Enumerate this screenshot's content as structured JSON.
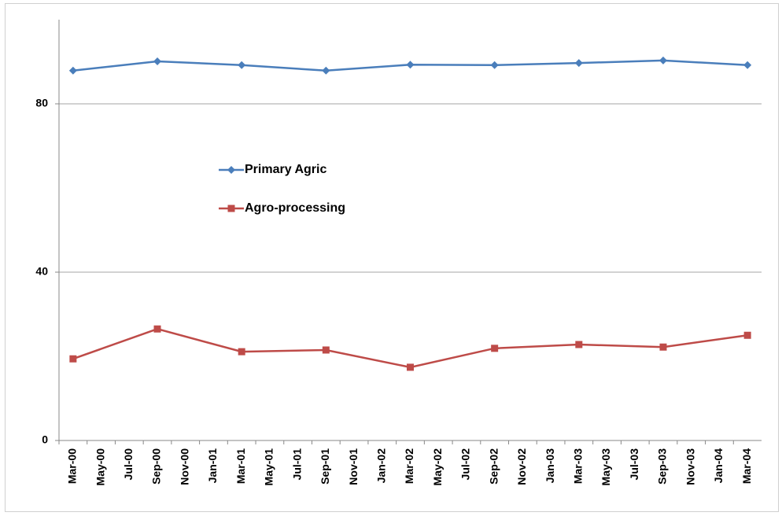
{
  "chart_data": {
    "type": "line",
    "x": [
      "2000-03",
      "2000-09",
      "2001-03",
      "2001-09",
      "2002-03",
      "2002-09",
      "2003-03",
      "2003-09",
      "2004-03"
    ],
    "series": [
      {
        "name": "Primary Agric",
        "color": "#4a7ebb",
        "marker": "diamond",
        "values": [
          87.9,
          90.1,
          89.2,
          87.9,
          89.3,
          89.2,
          89.7,
          90.3,
          89.2
        ]
      },
      {
        "name": "Agro-processing",
        "color": "#be4b48",
        "marker": "square",
        "values": [
          19.4,
          26.5,
          21.1,
          21.5,
          17.4,
          21.9,
          22.8,
          22.2,
          25.0
        ]
      }
    ],
    "xlim": [
      "2000-03",
      "2004-03"
    ],
    "xticks": [
      {
        "value": "2000-03",
        "label": "Mar-00"
      },
      {
        "value": "2000-05",
        "label": "May-00"
      },
      {
        "value": "2000-07",
        "label": "Jul-00"
      },
      {
        "value": "2000-09",
        "label": "Sep-00"
      },
      {
        "value": "2000-11",
        "label": "Nov-00"
      },
      {
        "value": "2001-01",
        "label": "Jan-01"
      },
      {
        "value": "2001-03",
        "label": "Mar-01"
      },
      {
        "value": "2001-05",
        "label": "May-01"
      },
      {
        "value": "2001-07",
        "label": "Jul-01"
      },
      {
        "value": "2001-09",
        "label": "Sep-01"
      },
      {
        "value": "2001-11",
        "label": "Nov-01"
      },
      {
        "value": "2002-01",
        "label": "Jan-02"
      },
      {
        "value": "2002-03",
        "label": "Mar-02"
      },
      {
        "value": "2002-05",
        "label": "May-02"
      },
      {
        "value": "2002-07",
        "label": "Jul-02"
      },
      {
        "value": "2002-09",
        "label": "Sep-02"
      },
      {
        "value": "2002-11",
        "label": "Nov-02"
      },
      {
        "value": "2003-01",
        "label": "Jan-03"
      },
      {
        "value": "2003-03",
        "label": "Mar-03"
      },
      {
        "value": "2003-05",
        "label": "May-03"
      },
      {
        "value": "2003-07",
        "label": "Jul-03"
      },
      {
        "value": "2003-09",
        "label": "Sep-03"
      },
      {
        "value": "2003-11",
        "label": "Nov-03"
      },
      {
        "value": "2004-01",
        "label": "Jan-04"
      },
      {
        "value": "2004-03",
        "label": "Mar-04"
      }
    ],
    "ylim": [
      0,
      100
    ],
    "yticks": [
      0,
      40,
      80
    ],
    "grid": true
  }
}
